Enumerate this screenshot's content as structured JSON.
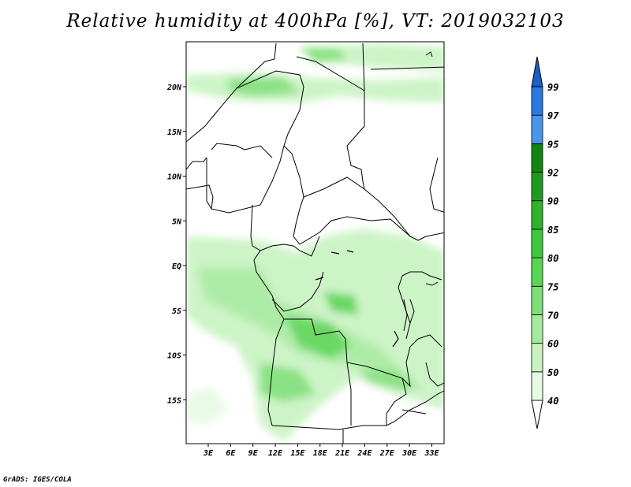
{
  "title": "Relative humidity at 400hPa [%], VT: 2019032103",
  "credit": "GrADS: IGES/COLA",
  "map": {
    "lat_labels": [
      {
        "lat": 20,
        "label": "20N"
      },
      {
        "lat": 15,
        "label": "15N"
      },
      {
        "lat": 10,
        "label": "10N"
      },
      {
        "lat": 5,
        "label": "5N"
      },
      {
        "lat": 0,
        "label": "EQ"
      },
      {
        "lat": -5,
        "label": "5S"
      },
      {
        "lat": -10,
        "label": "10S"
      },
      {
        "lat": -15,
        "label": "15S"
      }
    ],
    "lon_labels": [
      {
        "lon": 3,
        "label": "3E"
      },
      {
        "lon": 6,
        "label": "6E"
      },
      {
        "lon": 9,
        "label": "9E"
      },
      {
        "lon": 12,
        "label": "12E"
      },
      {
        "lon": 15,
        "label": "15E"
      },
      {
        "lon": 18,
        "label": "18E"
      },
      {
        "lon": 21,
        "label": "21E"
      },
      {
        "lon": 24,
        "label": "24E"
      },
      {
        "lon": 27,
        "label": "27E"
      },
      {
        "lon": 30,
        "label": "30E"
      },
      {
        "lon": 33,
        "label": "33E"
      }
    ],
    "lon_range": [
      0,
      34
    ],
    "lat_range": [
      -20,
      25
    ]
  },
  "colorbar": {
    "levels": [
      "40",
      "50",
      "60",
      "70",
      "75",
      "80",
      "85",
      "90",
      "92",
      "95",
      "97",
      "99"
    ],
    "colors": [
      "#e6fbe3",
      "#c8f3c1",
      "#a5eb9d",
      "#7fdf77",
      "#5ad453",
      "#3ec83c",
      "#2fb32d",
      "#1f9a1f",
      "#118513",
      "#4896ea",
      "#2a79df",
      "#1d5fc8"
    ]
  }
}
